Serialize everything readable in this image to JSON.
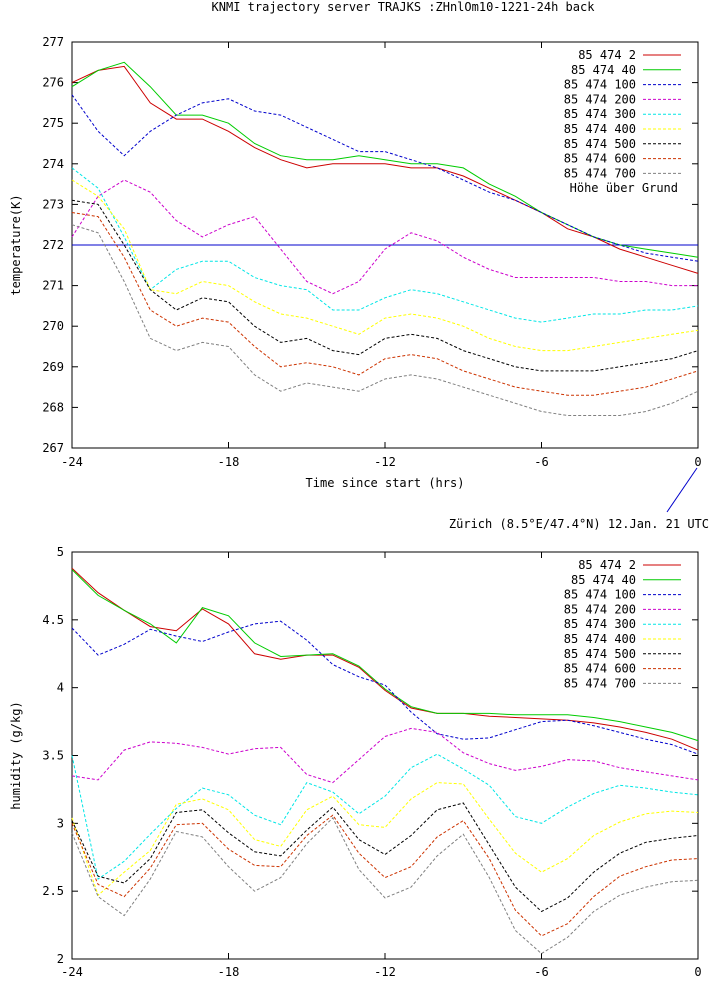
{
  "page_title": "KNMI trajectory server TRAJKS :ZHnlOm10-1221-24h back",
  "location_label": "Zürich (8.5°E/47.4°N) 12.Jan. 21 UTC",
  "colors": {
    "series": [
      "#cc0000",
      "#00cc00",
      "#0000cc",
      "#cc00cc",
      "#00e6e6",
      "#ffff00",
      "#000000",
      "#cc3300",
      "#808080"
    ],
    "reference_line": "#0000cc"
  },
  "chart_data": [
    {
      "type": "line",
      "title": "",
      "xlabel": "Time since start (hrs)",
      "ylabel": "temperature(K)",
      "xlim": [
        -24,
        0
      ],
      "ylim": [
        267,
        277
      ],
      "x_ticks": [
        "-24",
        "-18",
        "-12",
        "-6",
        "0"
      ],
      "y_ticks": [
        "267",
        "268",
        "269",
        "270",
        "271",
        "272",
        "273",
        "274",
        "275",
        "276",
        "277"
      ],
      "legend_position": "top-right",
      "legend_note": "Höhe über Grund",
      "grid": false,
      "reference_line": {
        "y": 272
      },
      "x": [
        -24,
        -23,
        -22,
        -21,
        -20,
        -19,
        -18,
        -17,
        -16,
        -15,
        -14,
        -13,
        -12,
        -11,
        -10,
        -9,
        -8,
        -7,
        -6,
        -5,
        -4,
        -3,
        -2,
        -1,
        0
      ],
      "series": [
        {
          "name": "85 474 2",
          "dash": "solid",
          "values": [
            276.0,
            276.3,
            276.4,
            275.5,
            275.1,
            275.1,
            274.8,
            274.4,
            274.1,
            273.9,
            274.0,
            274.0,
            274.0,
            273.9,
            273.9,
            273.7,
            273.4,
            273.1,
            272.8,
            272.4,
            272.2,
            271.9,
            271.7,
            271.5,
            271.3
          ]
        },
        {
          "name": "85 474 40",
          "dash": "solid",
          "values": [
            275.9,
            276.3,
            276.5,
            275.9,
            275.2,
            275.2,
            275.0,
            274.5,
            274.2,
            274.1,
            274.1,
            274.2,
            274.1,
            274.0,
            274.0,
            273.9,
            273.5,
            273.2,
            272.8,
            272.5,
            272.2,
            272.0,
            271.9,
            271.8,
            271.7
          ]
        },
        {
          "name": "85 474 100",
          "dash": "dash",
          "values": [
            275.7,
            274.8,
            274.2,
            274.8,
            275.2,
            275.5,
            275.6,
            275.3,
            275.2,
            274.9,
            274.6,
            274.3,
            274.3,
            274.1,
            273.9,
            273.6,
            273.3,
            273.1,
            272.8,
            272.5,
            272.2,
            272.0,
            271.8,
            271.7,
            271.6
          ]
        },
        {
          "name": "85 474 200",
          "dash": "dash",
          "values": [
            272.2,
            273.2,
            273.6,
            273.3,
            272.6,
            272.2,
            272.5,
            272.7,
            271.9,
            271.1,
            270.8,
            271.1,
            271.9,
            272.3,
            272.1,
            271.7,
            271.4,
            271.2,
            271.2,
            271.2,
            271.2,
            271.1,
            271.1,
            271.0,
            271.0
          ]
        },
        {
          "name": "85 474 300",
          "dash": "dash",
          "values": [
            273.9,
            273.4,
            272.2,
            270.9,
            271.4,
            271.6,
            271.6,
            271.2,
            271.0,
            270.9,
            270.4,
            270.4,
            270.7,
            270.9,
            270.8,
            270.6,
            270.4,
            270.2,
            270.1,
            270.2,
            270.3,
            270.3,
            270.4,
            270.4,
            270.5
          ]
        },
        {
          "name": "85 474 400",
          "dash": "dash",
          "values": [
            273.6,
            273.2,
            272.4,
            270.9,
            270.8,
            271.1,
            271.0,
            270.6,
            270.3,
            270.2,
            270.0,
            269.8,
            270.2,
            270.3,
            270.2,
            270.0,
            269.7,
            269.5,
            269.4,
            269.4,
            269.5,
            269.6,
            269.7,
            269.8,
            269.9
          ]
        },
        {
          "name": "85 474 500",
          "dash": "dash",
          "values": [
            273.1,
            273.0,
            272.0,
            270.9,
            270.4,
            270.7,
            270.6,
            270.0,
            269.6,
            269.7,
            269.4,
            269.3,
            269.7,
            269.8,
            269.7,
            269.4,
            269.2,
            269.0,
            268.9,
            268.9,
            268.9,
            269.0,
            269.1,
            269.2,
            269.4
          ]
        },
        {
          "name": "85 474 600",
          "dash": "dash",
          "values": [
            272.8,
            272.7,
            271.7,
            270.4,
            270.0,
            270.2,
            270.1,
            269.5,
            269.0,
            269.1,
            269.0,
            268.8,
            269.2,
            269.3,
            269.2,
            268.9,
            268.7,
            268.5,
            268.4,
            268.3,
            268.3,
            268.4,
            268.5,
            268.7,
            268.9
          ]
        },
        {
          "name": "85 474 700",
          "dash": "dash",
          "values": [
            272.5,
            272.3,
            271.1,
            269.7,
            269.4,
            269.6,
            269.5,
            268.8,
            268.4,
            268.6,
            268.5,
            268.4,
            268.7,
            268.8,
            268.7,
            268.5,
            268.3,
            268.1,
            267.9,
            267.8,
            267.8,
            267.8,
            267.9,
            268.1,
            268.4
          ]
        }
      ]
    },
    {
      "type": "line",
      "title": "",
      "xlabel": "",
      "ylabel": "humidity (g/kg)",
      "xlim": [
        -24,
        0
      ],
      "ylim": [
        2,
        5
      ],
      "x_ticks": [
        "-24",
        "-18",
        "-12",
        "-6",
        "0"
      ],
      "y_ticks": [
        "2",
        "2.5",
        "3",
        "3.5",
        "4",
        "4.5",
        "5"
      ],
      "legend_position": "top-right",
      "grid": false,
      "x": [
        -24,
        -23,
        -22,
        -21,
        -20,
        -19,
        -18,
        -17,
        -16,
        -15,
        -14,
        -13,
        -12,
        -11,
        -10,
        -9,
        -8,
        -7,
        -6,
        -5,
        -4,
        -3,
        -2,
        -1,
        0
      ],
      "series": [
        {
          "name": "85 474 2",
          "dash": "solid",
          "values": [
            4.88,
            4.7,
            4.57,
            4.45,
            4.42,
            4.58,
            4.47,
            4.25,
            4.21,
            4.24,
            4.24,
            4.15,
            3.98,
            3.85,
            3.81,
            3.81,
            3.79,
            3.78,
            3.77,
            3.76,
            3.74,
            3.71,
            3.67,
            3.62,
            3.54
          ]
        },
        {
          "name": "85 474 40",
          "dash": "solid",
          "values": [
            4.87,
            4.68,
            4.57,
            4.47,
            4.33,
            4.59,
            4.53,
            4.33,
            4.23,
            4.24,
            4.25,
            4.16,
            3.99,
            3.86,
            3.81,
            3.81,
            3.81,
            3.8,
            3.8,
            3.8,
            3.78,
            3.75,
            3.71,
            3.67,
            3.61
          ]
        },
        {
          "name": "85 474 100",
          "dash": "dash",
          "values": [
            4.44,
            4.24,
            4.32,
            4.43,
            4.38,
            4.34,
            4.41,
            4.47,
            4.49,
            4.35,
            4.17,
            4.08,
            4.02,
            3.82,
            3.66,
            3.62,
            3.63,
            3.69,
            3.75,
            3.76,
            3.72,
            3.67,
            3.62,
            3.58,
            3.51
          ]
        },
        {
          "name": "85 474 200",
          "dash": "dash",
          "values": [
            3.35,
            3.32,
            3.54,
            3.6,
            3.59,
            3.56,
            3.51,
            3.55,
            3.56,
            3.36,
            3.3,
            3.47,
            3.64,
            3.7,
            3.67,
            3.52,
            3.44,
            3.39,
            3.42,
            3.47,
            3.46,
            3.41,
            3.38,
            3.35,
            3.32
          ]
        },
        {
          "name": "85 474 300",
          "dash": "dash",
          "values": [
            3.5,
            2.59,
            2.72,
            2.92,
            3.11,
            3.26,
            3.21,
            3.06,
            2.99,
            3.3,
            3.23,
            3.07,
            3.2,
            3.41,
            3.51,
            3.4,
            3.28,
            3.05,
            3.0,
            3.12,
            3.22,
            3.28,
            3.26,
            3.23,
            3.21
          ]
        },
        {
          "name": "85 474 400",
          "dash": "dash",
          "values": [
            3.04,
            2.47,
            2.64,
            2.8,
            3.14,
            3.18,
            3.1,
            2.88,
            2.83,
            3.1,
            3.2,
            2.99,
            2.97,
            3.18,
            3.3,
            3.29,
            3.03,
            2.78,
            2.64,
            2.74,
            2.91,
            3.01,
            3.07,
            3.09,
            3.08
          ]
        },
        {
          "name": "85 474 500",
          "dash": "dash",
          "values": [
            3.02,
            2.61,
            2.56,
            2.74,
            3.08,
            3.1,
            2.93,
            2.79,
            2.76,
            2.95,
            3.12,
            2.88,
            2.77,
            2.91,
            3.1,
            3.15,
            2.84,
            2.53,
            2.35,
            2.45,
            2.64,
            2.78,
            2.86,
            2.89,
            2.91
          ]
        },
        {
          "name": "85 474 600",
          "dash": "dash",
          "values": [
            3.0,
            2.55,
            2.46,
            2.67,
            2.99,
            3.0,
            2.81,
            2.69,
            2.68,
            2.91,
            3.06,
            2.78,
            2.6,
            2.68,
            2.9,
            3.02,
            2.74,
            2.36,
            2.17,
            2.26,
            2.46,
            2.61,
            2.68,
            2.73,
            2.74
          ]
        },
        {
          "name": "85 474 700",
          "dash": "dash",
          "values": [
            2.93,
            2.46,
            2.32,
            2.59,
            2.94,
            2.9,
            2.68,
            2.5,
            2.6,
            2.85,
            3.04,
            2.66,
            2.45,
            2.53,
            2.76,
            2.92,
            2.6,
            2.21,
            2.04,
            2.16,
            2.35,
            2.47,
            2.53,
            2.57,
            2.58
          ]
        }
      ]
    }
  ]
}
